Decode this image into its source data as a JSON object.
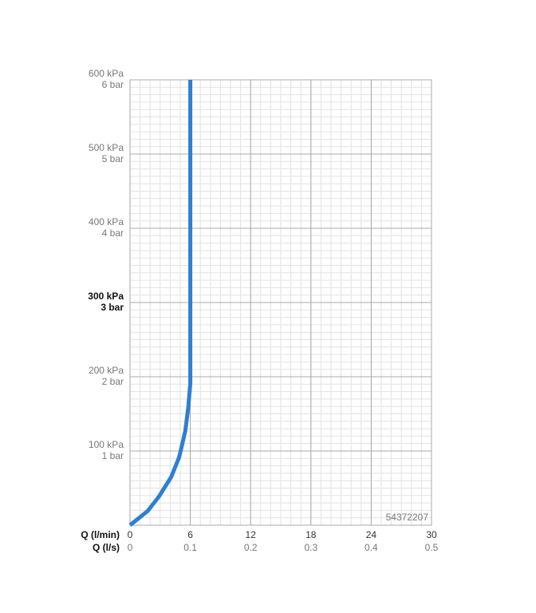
{
  "chart_data": {
    "type": "line",
    "x": [
      0,
      1.75,
      2.9,
      4.1,
      4.9,
      5.5,
      5.8,
      6,
      6
    ],
    "series": [
      {
        "color": "#2f7fd0",
        "values": [
          0,
          19,
          39,
          65,
          92,
          127,
          159,
          191,
          600
        ]
      }
    ],
    "xlabel": "Q (l/min)",
    "xlim": [
      0,
      30
    ],
    "xticks": [
      0,
      6,
      12,
      18,
      24,
      30
    ],
    "x2label": "Q (l/s)",
    "x2lim": [
      0,
      0.5
    ],
    "x2ticks": [
      0,
      0.1,
      0.2,
      0.3,
      0.4,
      0.5
    ],
    "ylim": [
      0,
      600
    ],
    "yticks": [
      {
        "value": 100,
        "label": "100 kPa"
      },
      {
        "value": 200,
        "label": "200 kPa"
      },
      {
        "value": 300,
        "label": "300 kPa"
      },
      {
        "value": 400,
        "label": "400 kPa"
      },
      {
        "value": 500,
        "label": "500 kPa"
      },
      {
        "value": 600,
        "label": "600 kPa"
      }
    ],
    "y2lim": [
      0,
      6
    ],
    "y2ticks": [
      {
        "value": 1,
        "label": "1 bar"
      },
      {
        "value": 2,
        "label": "2 bar"
      },
      {
        "value": 3,
        "label": "3 bar"
      },
      {
        "value": 4,
        "label": "4 bar"
      },
      {
        "value": 5,
        "label": "5 bar"
      },
      {
        "value": 6,
        "label": "6 bar"
      }
    ],
    "bold_ytick": 300,
    "annotation": "54372207",
    "grid": true
  }
}
